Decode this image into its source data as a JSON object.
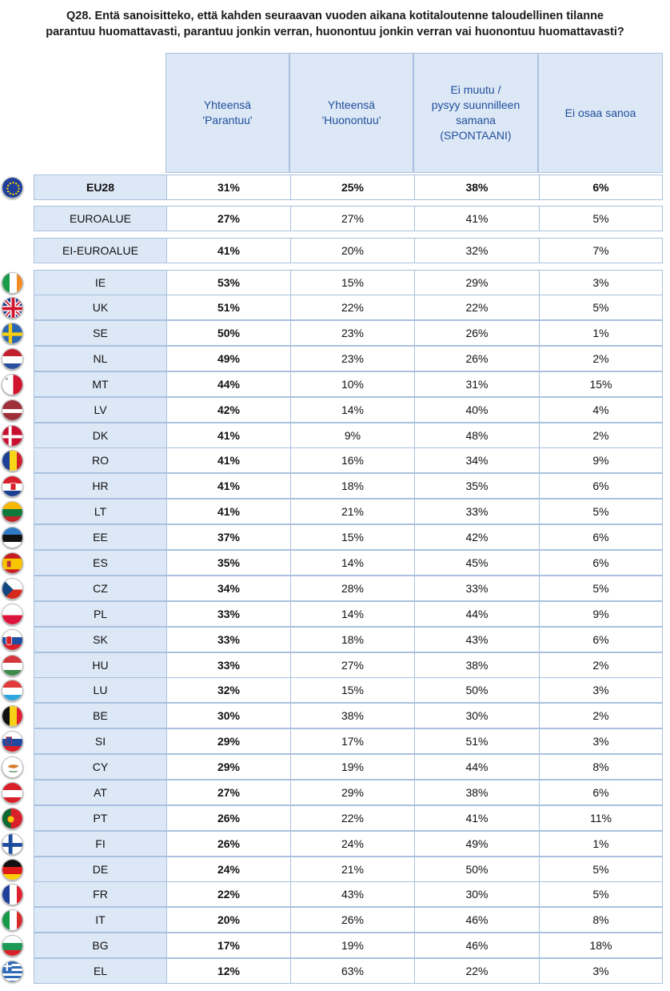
{
  "title_line1": "Q28. Entä sanoisitteko, että kahden seuraavan vuoden aikana kotitaloutenne taloudellinen tilanne",
  "title_line2": "parantuu huomattavasti, parantuu jonkin verran, huonontuu jonkin verran vai huonontuu huomattavasti?",
  "colors": {
    "header_fill": "#dde8f6",
    "header_text": "#1e4e9c",
    "border": "#a9c1df"
  },
  "chart_data": {
    "type": "table",
    "title": "Q28. Entä sanoisitteko, että kahden seuraavan vuoden aikana kotitaloutenne taloudellinen tilanne parantuu huomattavasti, parantuu jonkin verran, huonontuu jonkin verran vai huonontuu huomattavasti?",
    "columns": [
      [
        "Yhteensä",
        "'Parantuu'"
      ],
      [
        "Yhteensä",
        "'Huonontuu'"
      ],
      [
        "Ei muutu /",
        "pysyy suunnilleen",
        "samana",
        "(SPONTAANI)"
      ],
      [
        "Ei osaa sanoa"
      ]
    ],
    "rows": [
      {
        "label": "EU28",
        "values": [
          "31%",
          "25%",
          "38%",
          "6%"
        ],
        "flag": "eu-flag-icon"
      },
      {
        "label": "EUROALUE",
        "values": [
          "27%",
          "27%",
          "41%",
          "5%"
        ]
      },
      {
        "label": "EI-EUROALUE",
        "values": [
          "41%",
          "20%",
          "32%",
          "7%"
        ]
      },
      {
        "label": "IE",
        "values": [
          "53%",
          "15%",
          "29%",
          "3%"
        ],
        "flag": "ie-flag-icon"
      },
      {
        "label": "UK",
        "values": [
          "51%",
          "22%",
          "22%",
          "5%"
        ],
        "flag": "uk-flag-icon"
      },
      {
        "label": "SE",
        "values": [
          "50%",
          "23%",
          "26%",
          "1%"
        ],
        "flag": "se-flag-icon"
      },
      {
        "label": "NL",
        "values": [
          "49%",
          "23%",
          "26%",
          "2%"
        ],
        "flag": "nl-flag-icon"
      },
      {
        "label": "MT",
        "values": [
          "44%",
          "10%",
          "31%",
          "15%"
        ],
        "flag": "mt-flag-icon"
      },
      {
        "label": "LV",
        "values": [
          "42%",
          "14%",
          "40%",
          "4%"
        ],
        "flag": "lv-flag-icon"
      },
      {
        "label": "DK",
        "values": [
          "41%",
          "9%",
          "48%",
          "2%"
        ],
        "flag": "dk-flag-icon"
      },
      {
        "label": "RO",
        "values": [
          "41%",
          "16%",
          "34%",
          "9%"
        ],
        "flag": "ro-flag-icon"
      },
      {
        "label": "HR",
        "values": [
          "41%",
          "18%",
          "35%",
          "6%"
        ],
        "flag": "hr-flag-icon"
      },
      {
        "label": "LT",
        "values": [
          "41%",
          "21%",
          "33%",
          "5%"
        ],
        "flag": "lt-flag-icon"
      },
      {
        "label": "EE",
        "values": [
          "37%",
          "15%",
          "42%",
          "6%"
        ],
        "flag": "ee-flag-icon"
      },
      {
        "label": "ES",
        "values": [
          "35%",
          "14%",
          "45%",
          "6%"
        ],
        "flag": "es-flag-icon"
      },
      {
        "label": "CZ",
        "values": [
          "34%",
          "28%",
          "33%",
          "5%"
        ],
        "flag": "cz-flag-icon"
      },
      {
        "label": "PL",
        "values": [
          "33%",
          "14%",
          "44%",
          "9%"
        ],
        "flag": "pl-flag-icon"
      },
      {
        "label": "SK",
        "values": [
          "33%",
          "18%",
          "43%",
          "6%"
        ],
        "flag": "sk-flag-icon"
      },
      {
        "label": "HU",
        "values": [
          "33%",
          "27%",
          "38%",
          "2%"
        ],
        "flag": "hu-flag-icon"
      },
      {
        "label": "LU",
        "values": [
          "32%",
          "15%",
          "50%",
          "3%"
        ],
        "flag": "lu-flag-icon"
      },
      {
        "label": "BE",
        "values": [
          "30%",
          "38%",
          "30%",
          "2%"
        ],
        "flag": "be-flag-icon"
      },
      {
        "label": "SI",
        "values": [
          "29%",
          "17%",
          "51%",
          "3%"
        ],
        "flag": "si-flag-icon"
      },
      {
        "label": "CY",
        "values": [
          "29%",
          "19%",
          "44%",
          "8%"
        ],
        "flag": "cy-flag-icon"
      },
      {
        "label": "AT",
        "values": [
          "27%",
          "29%",
          "38%",
          "6%"
        ],
        "flag": "at-flag-icon"
      },
      {
        "label": "PT",
        "values": [
          "26%",
          "22%",
          "41%",
          "11%"
        ],
        "flag": "pt-flag-icon"
      },
      {
        "label": "FI",
        "values": [
          "26%",
          "24%",
          "49%",
          "1%"
        ],
        "flag": "fi-flag-icon"
      },
      {
        "label": "DE",
        "values": [
          "24%",
          "21%",
          "50%",
          "5%"
        ],
        "flag": "de-flag-icon"
      },
      {
        "label": "FR",
        "values": [
          "22%",
          "43%",
          "30%",
          "5%"
        ],
        "flag": "fr-flag-icon"
      },
      {
        "label": "IT",
        "values": [
          "20%",
          "26%",
          "46%",
          "8%"
        ],
        "flag": "it-flag-icon"
      },
      {
        "label": "BG",
        "values": [
          "17%",
          "19%",
          "46%",
          "18%"
        ],
        "flag": "bg-flag-icon"
      },
      {
        "label": "EL",
        "values": [
          "12%",
          "63%",
          "22%",
          "3%"
        ],
        "flag": "el-flag-icon"
      }
    ]
  }
}
